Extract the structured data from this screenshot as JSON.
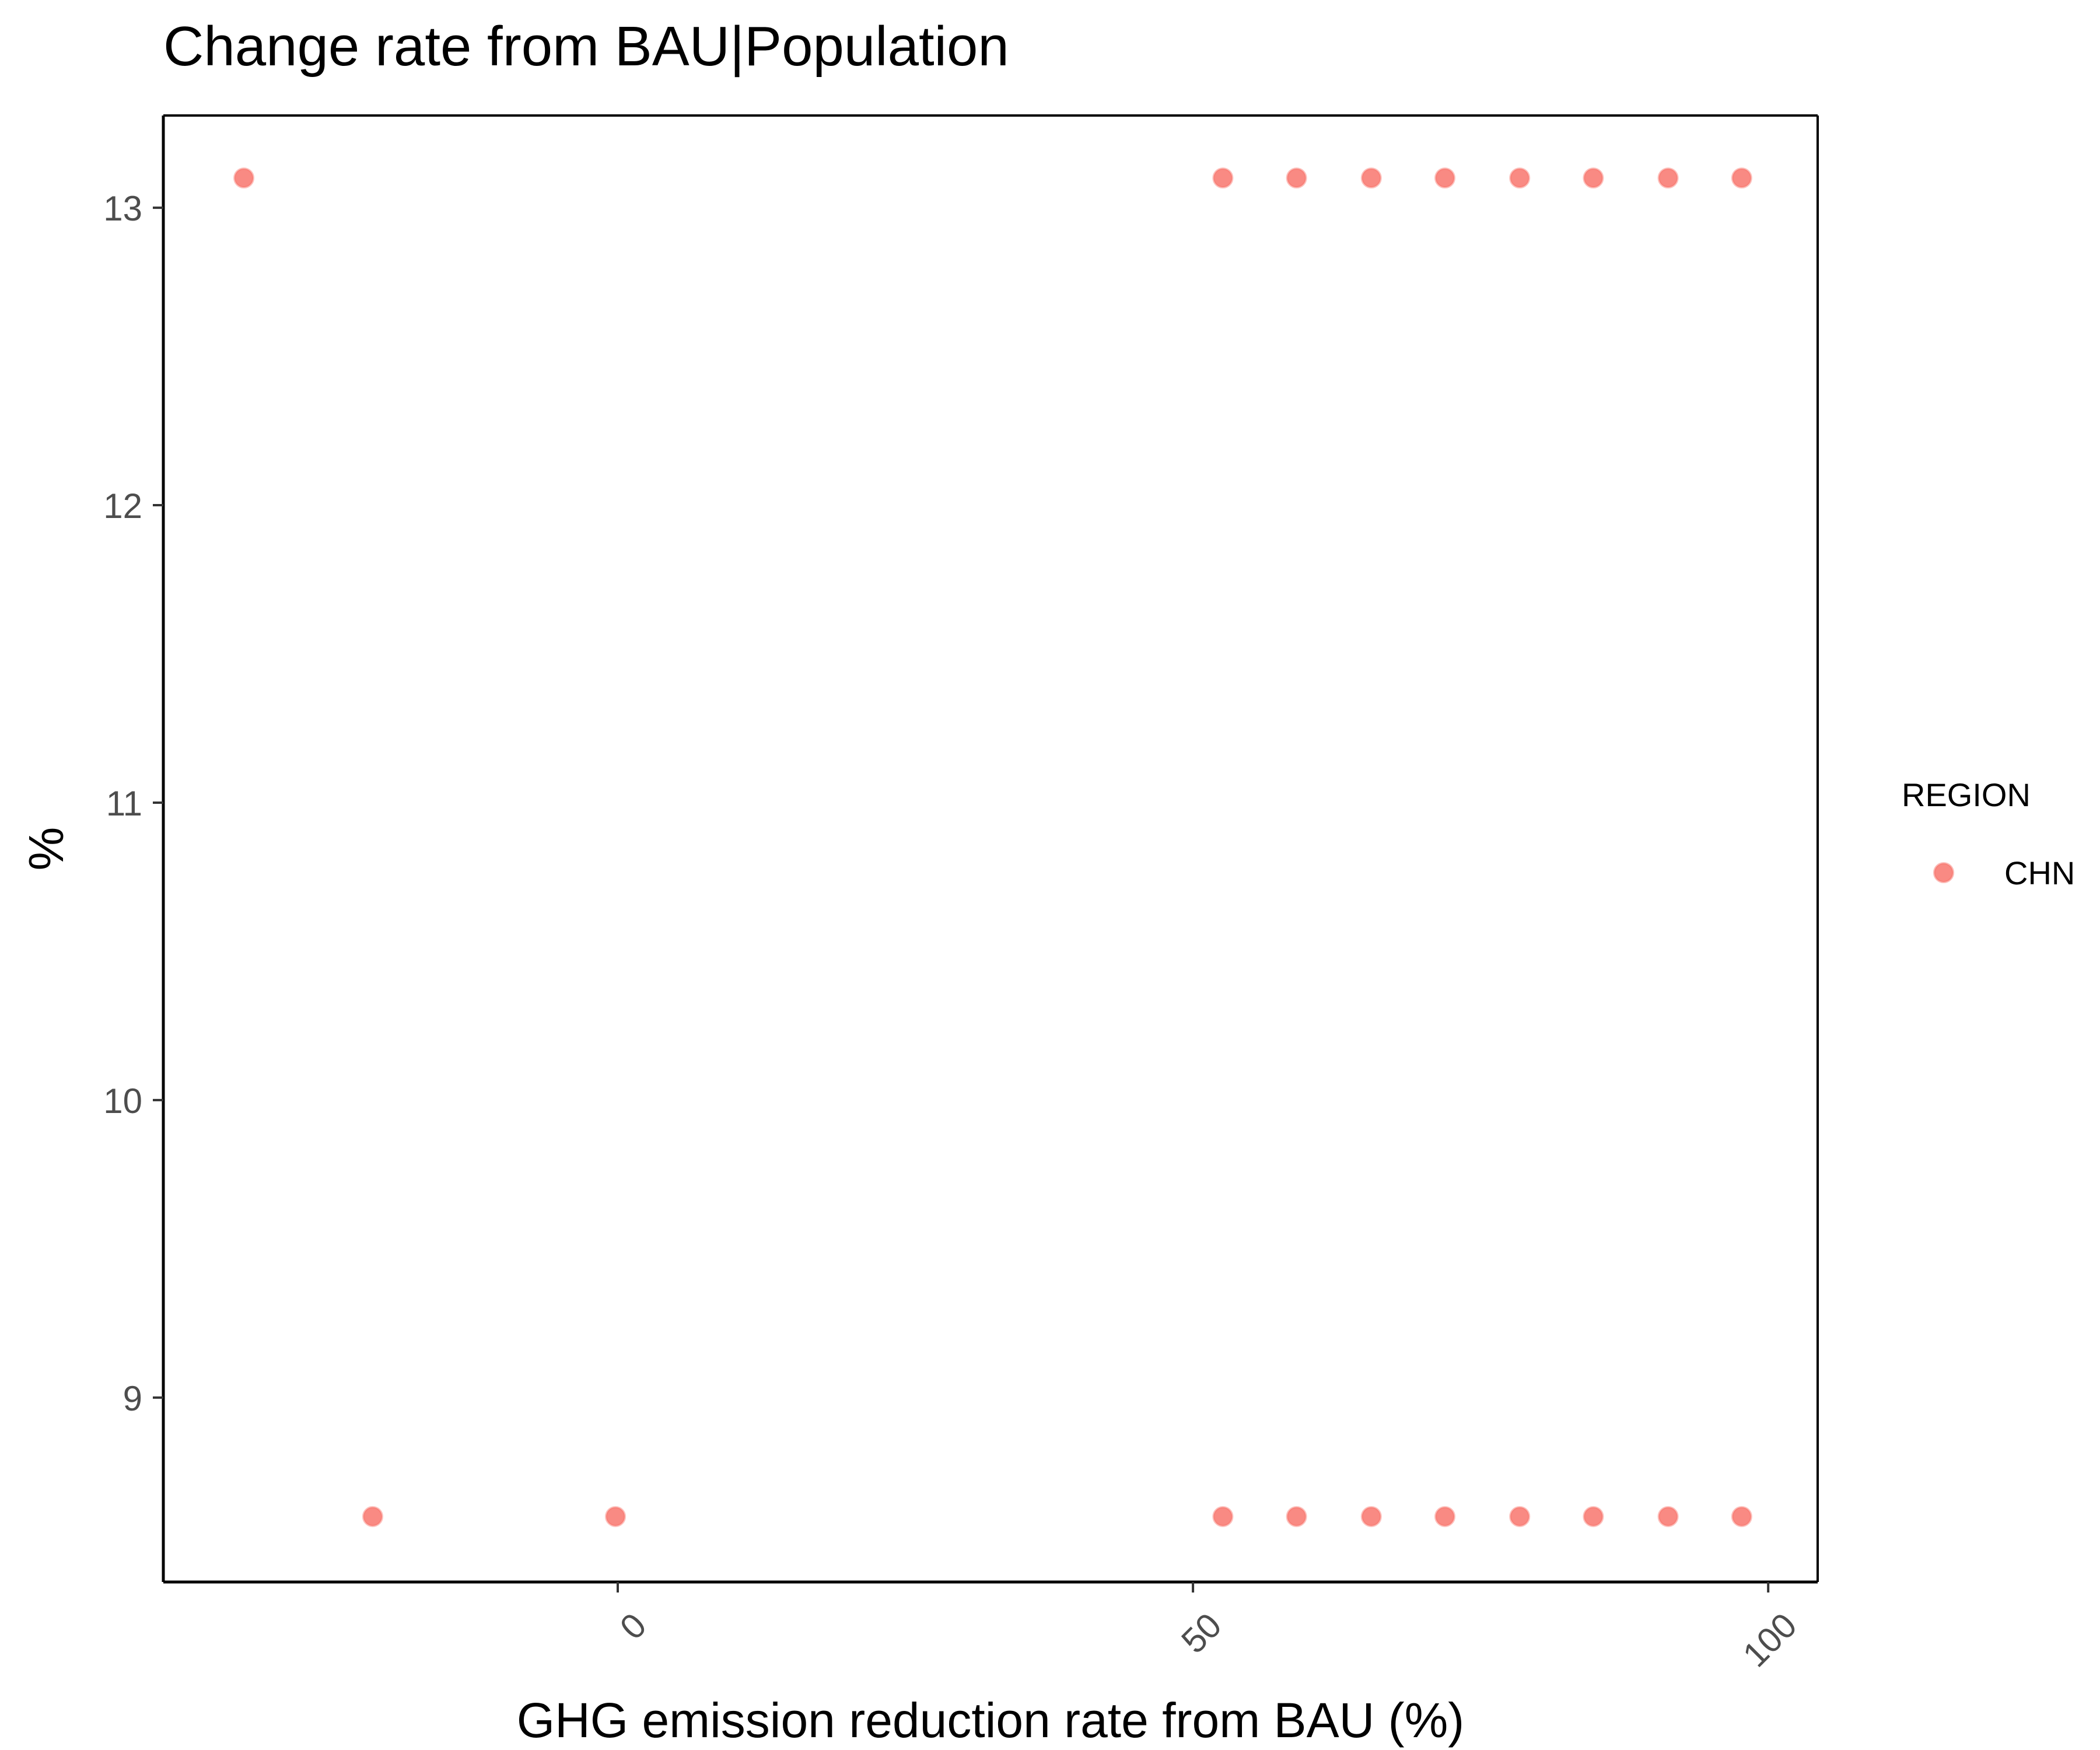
{
  "chart_data": {
    "type": "scatter",
    "title": "Change rate from BAU|Population",
    "xlabel": "GHG emission reduction rate from BAU (%)",
    "ylabel": "%",
    "xlim": [
      -39.5,
      104.3
    ],
    "ylim": [
      8.38,
      13.31
    ],
    "x_ticks": [
      0,
      50,
      100
    ],
    "y_ticks": [
      9,
      10,
      11,
      12,
      13
    ],
    "grid": false,
    "legend": {
      "title": "REGION",
      "position": "right"
    },
    "series": [
      {
        "name": "CHN",
        "color": "#F8766D",
        "points": [
          [
            -32.5,
            13.1
          ],
          [
            -21.3,
            8.6
          ],
          [
            -0.2,
            8.6
          ],
          [
            52.6,
            13.1
          ],
          [
            59.0,
            13.1
          ],
          [
            65.5,
            13.1
          ],
          [
            71.9,
            13.1
          ],
          [
            78.4,
            13.1
          ],
          [
            84.8,
            13.1
          ],
          [
            91.3,
            13.1
          ],
          [
            97.7,
            13.1
          ],
          [
            52.6,
            8.6
          ],
          [
            59.0,
            8.6
          ],
          [
            65.5,
            8.6
          ],
          [
            71.9,
            8.6
          ],
          [
            78.4,
            8.6
          ],
          [
            84.8,
            8.6
          ],
          [
            91.3,
            8.6
          ],
          [
            97.7,
            8.6
          ]
        ]
      }
    ]
  }
}
